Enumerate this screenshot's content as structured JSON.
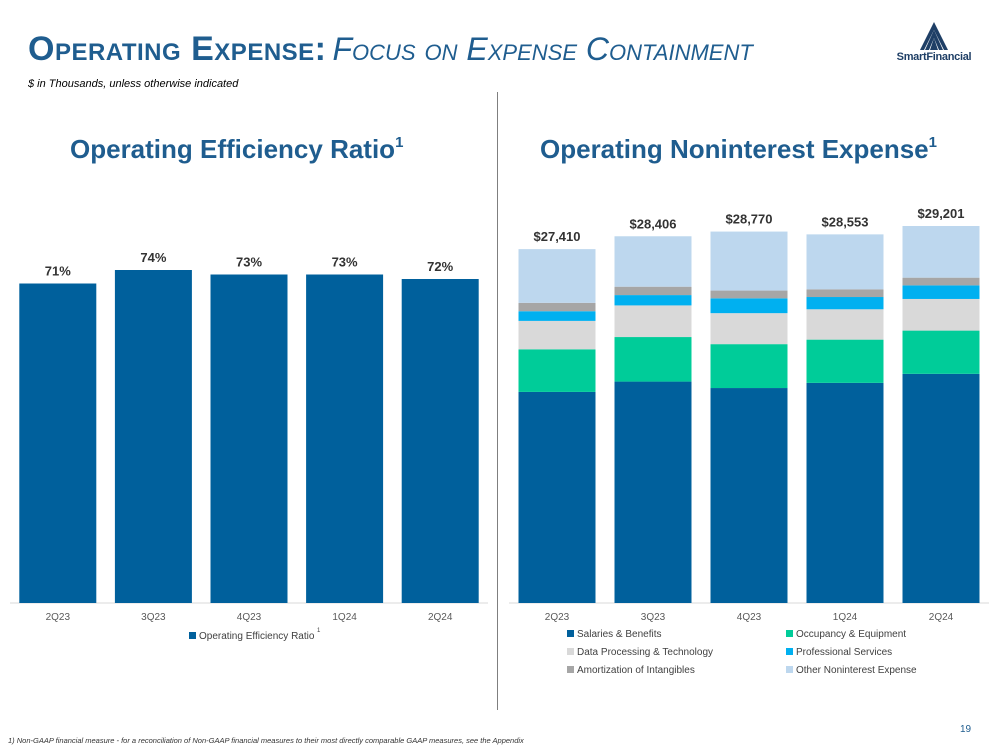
{
  "header": {
    "title_main": "Operating Expense:",
    "title_sub": "Focus on Expense Containment",
    "subtitle": "$ in Thousands, unless otherwise indicated"
  },
  "logo": {
    "text": "SmartFinancial",
    "icon": "mountain-logo-icon"
  },
  "colors": {
    "brand": "#1f5d8f",
    "salaries": "#00609c",
    "occupancy": "#00cc99",
    "data_processing": "#d9d9d9",
    "professional": "#00b0f0",
    "amortization": "#a6a6a6",
    "other": "#bdd7ee",
    "efficiency_bar": "#00609c"
  },
  "chart_data": [
    {
      "id": "efficiency",
      "type": "bar",
      "title": "Operating Efficiency Ratio",
      "title_sup": "1",
      "categories": [
        "2Q23",
        "3Q23",
        "4Q23",
        "1Q24",
        "2Q24"
      ],
      "series": [
        {
          "name": "Operating Efficiency Ratio",
          "values": [
            71,
            74,
            73,
            73,
            72
          ]
        }
      ],
      "data_labels": [
        "71%",
        "74%",
        "73%",
        "73%",
        "72%"
      ],
      "legend_sup": "1",
      "ylim": [
        0,
        74
      ],
      "legend": "bottom"
    },
    {
      "id": "noninterest",
      "type": "bar",
      "stacked": true,
      "title": "Operating Noninterest Expense",
      "title_sup": "1",
      "categories": [
        "2Q23",
        "3Q23",
        "4Q23",
        "1Q24",
        "2Q24"
      ],
      "totals": [
        27410,
        28406,
        28770,
        28553,
        29201
      ],
      "total_labels": [
        "$27,410",
        "$28,406",
        "$28,770",
        "$28,553",
        "$29,201"
      ],
      "series": [
        {
          "name": "Salaries & Benefits",
          "values": [
            16350,
            17150,
            16650,
            17050,
            17750
          ]
        },
        {
          "name": "Occupancy & Equipment",
          "values": [
            3300,
            3450,
            3400,
            3350,
            3350
          ]
        },
        {
          "name": "Data Processing & Technology",
          "values": [
            2200,
            2450,
            2400,
            2350,
            2450
          ]
        },
        {
          "name": "Professional Services",
          "values": [
            750,
            800,
            1150,
            950,
            1050
          ]
        },
        {
          "name": "Amortization of Intangibles",
          "values": [
            650,
            650,
            600,
            600,
            600
          ]
        },
        {
          "name": "Other Noninterest Expense",
          "values": [
            4160,
            3906,
            4570,
            4253,
            4001
          ]
        }
      ],
      "ylim": [
        0,
        29201
      ],
      "legend": "bottom"
    }
  ],
  "footnote": "1) Non-GAAP financial measure - for a reconciliation of Non-GAAP financial measures to their most directly comparable GAAP measures, see the Appendix",
  "page_number": "19"
}
